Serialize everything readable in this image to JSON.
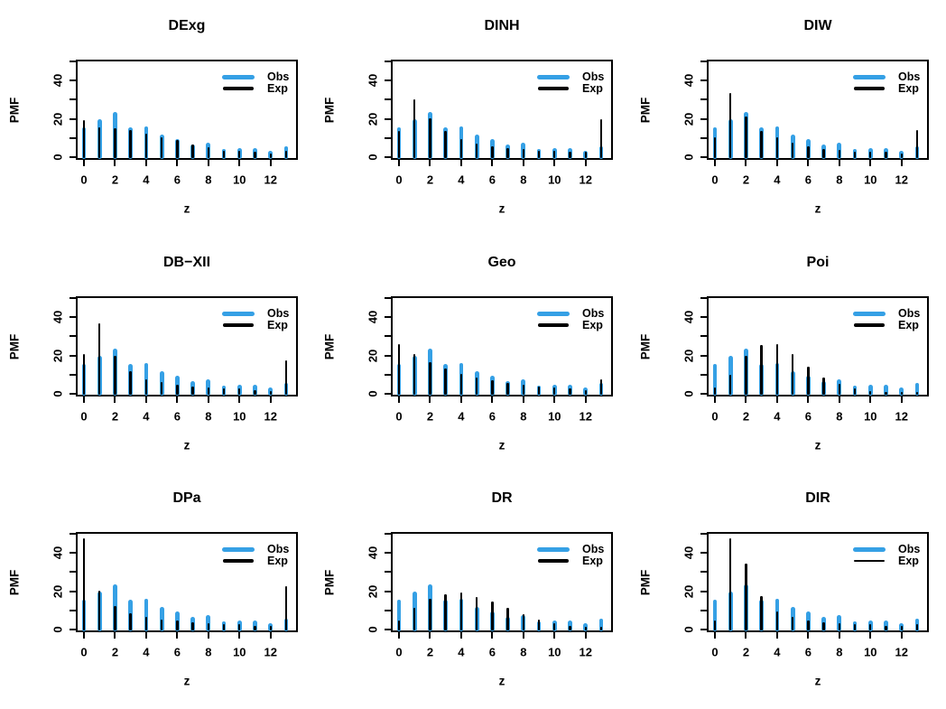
{
  "figure": {
    "y_axis_label": "PMF",
    "x_axis_label": "z",
    "background_color": "#ffffff",
    "axis_color": "#000000",
    "colors": {
      "obs": "#35A0E5",
      "exp": "#000000"
    },
    "legend": {
      "obs_label": "Obs",
      "exp_label": "Exp",
      "position": "top-right",
      "frame": "none"
    },
    "y_ticks": [
      {
        "v": 0,
        "label": "0"
      },
      {
        "v": 10,
        "label": ""
      },
      {
        "v": 20,
        "label": "20"
      },
      {
        "v": 30,
        "label": ""
      },
      {
        "v": 40,
        "label": "40"
      },
      {
        "v": 50,
        "label": ""
      }
    ],
    "x_ticks": [
      {
        "v": 0,
        "label": "0"
      },
      {
        "v": 2,
        "label": "2"
      },
      {
        "v": 4,
        "label": "4"
      },
      {
        "v": 6,
        "label": "6"
      },
      {
        "v": 8,
        "label": "8"
      },
      {
        "v": 10,
        "label": "10"
      },
      {
        "v": 12,
        "label": "12"
      }
    ]
  },
  "chart_data": [
    {
      "type": "bar",
      "title": "DExg",
      "xlabel": "z",
      "ylabel": "PMF",
      "ylim": [
        0,
        52
      ],
      "x": [
        0,
        1,
        2,
        3,
        4,
        5,
        6,
        7,
        8,
        9,
        10,
        11,
        12,
        13
      ],
      "series": [
        {
          "name": "Obs",
          "values": [
            14.5,
            18.5,
            22.5,
            14.5,
            15,
            10.5,
            8.5,
            5.5,
            6.5,
            3,
            3.5,
            3.5,
            2,
            4.5
          ]
        },
        {
          "name": "Exp",
          "values": [
            18.5,
            15,
            14.5,
            13.5,
            11.5,
            10,
            8.5,
            6,
            4.5,
            2.5,
            2.5,
            2,
            1.5,
            2.5
          ]
        }
      ],
      "legend_position": "top-right",
      "exp_legend_weight": "thick"
    },
    {
      "type": "bar",
      "title": "DINH",
      "xlabel": "z",
      "ylabel": "PMF",
      "ylim": [
        0,
        52
      ],
      "x": [
        0,
        1,
        2,
        3,
        4,
        5,
        6,
        7,
        8,
        9,
        10,
        11,
        12,
        13
      ],
      "series": [
        {
          "name": "Obs",
          "values": [
            14.5,
            18.5,
            22.5,
            14.5,
            15,
            10.5,
            8.5,
            5.5,
            6.5,
            3,
            3.5,
            3.5,
            2,
            4.5
          ]
        },
        {
          "name": "Exp",
          "values": [
            13,
            29.5,
            19.5,
            13,
            9,
            6.5,
            5,
            4,
            3.5,
            2.5,
            2.5,
            2,
            2,
            19
          ]
        }
      ],
      "legend_position": "top-right",
      "exp_legend_weight": "thick"
    },
    {
      "type": "bar",
      "title": "DIW",
      "xlabel": "z",
      "ylabel": "PMF",
      "ylim": [
        0,
        52
      ],
      "x": [
        0,
        1,
        2,
        3,
        4,
        5,
        6,
        7,
        8,
        9,
        10,
        11,
        12,
        13
      ],
      "series": [
        {
          "name": "Obs",
          "values": [
            14.5,
            18.5,
            22.5,
            14.5,
            15,
            10.5,
            8.5,
            5.5,
            6.5,
            3,
            3.5,
            3.5,
            2,
            4.5
          ]
        },
        {
          "name": "Exp",
          "values": [
            10,
            33,
            20.5,
            13,
            10,
            7,
            5,
            3.5,
            3,
            2,
            2,
            2,
            1.5,
            13.5
          ]
        }
      ],
      "legend_position": "top-right",
      "exp_legend_weight": "thick"
    },
    {
      "type": "bar",
      "title": "DB−XII",
      "xlabel": "z",
      "ylabel": "PMF",
      "ylim": [
        0,
        52
      ],
      "x": [
        0,
        1,
        2,
        3,
        4,
        5,
        6,
        7,
        8,
        9,
        10,
        11,
        12,
        13
      ],
      "series": [
        {
          "name": "Obs",
          "values": [
            14.5,
            18.5,
            22.5,
            14.5,
            15,
            10.5,
            8.5,
            5.5,
            6.5,
            3,
            3.5,
            3.5,
            2,
            4.5
          ]
        },
        {
          "name": "Exp",
          "values": [
            20,
            36,
            19,
            11,
            7,
            5.5,
            4,
            3,
            2.5,
            2,
            2,
            1.5,
            1,
            17
          ]
        }
      ],
      "legend_position": "top-right",
      "exp_legend_weight": "thick"
    },
    {
      "type": "bar",
      "title": "Geo",
      "xlabel": "z",
      "ylabel": "PMF",
      "ylim": [
        0,
        52
      ],
      "x": [
        0,
        1,
        2,
        3,
        4,
        5,
        6,
        7,
        8,
        9,
        10,
        11,
        12,
        13
      ],
      "series": [
        {
          "name": "Obs",
          "values": [
            14.5,
            18.5,
            22.5,
            14.5,
            15,
            10.5,
            8.5,
            5.5,
            6.5,
            3,
            3.5,
            3.5,
            2,
            4.5
          ]
        },
        {
          "name": "Exp",
          "values": [
            25.5,
            20,
            16,
            12.5,
            10,
            8,
            6.5,
            5,
            4,
            3,
            2.5,
            2,
            1.5,
            7
          ]
        }
      ],
      "legend_position": "top-right",
      "exp_legend_weight": "thick"
    },
    {
      "type": "bar",
      "title": "Poi",
      "xlabel": "z",
      "ylabel": "PMF",
      "ylim": [
        0,
        52
      ],
      "x": [
        0,
        1,
        2,
        3,
        4,
        5,
        6,
        7,
        8,
        9,
        10,
        11,
        12,
        13
      ],
      "series": [
        {
          "name": "Obs",
          "values": [
            14.5,
            18.5,
            22.5,
            14.5,
            15,
            10.5,
            8.5,
            5.5,
            6.5,
            3,
            3.5,
            3.5,
            2,
            4.5
          ]
        },
        {
          "name": "Exp",
          "values": [
            2.5,
            9.5,
            19,
            25,
            25.5,
            20,
            13.5,
            8,
            4.5,
            2,
            1,
            0.5,
            0.5,
            0.5
          ]
        }
      ],
      "legend_position": "top-right",
      "exp_legend_weight": "thick"
    },
    {
      "type": "bar",
      "title": "DPa",
      "xlabel": "z",
      "ylabel": "PMF",
      "ylim": [
        0,
        52
      ],
      "x": [
        0,
        1,
        2,
        3,
        4,
        5,
        6,
        7,
        8,
        9,
        10,
        11,
        12,
        13
      ],
      "series": [
        {
          "name": "Obs",
          "values": [
            14.5,
            18.5,
            22.5,
            14.5,
            15,
            10.5,
            8.5,
            5.5,
            6.5,
            3,
            3.5,
            3.5,
            2,
            4.5
          ]
        },
        {
          "name": "Exp",
          "values": [
            47,
            19.5,
            11.5,
            8,
            6,
            4.5,
            4,
            3,
            2.5,
            2,
            2,
            1.5,
            1.5,
            22
          ]
        }
      ],
      "legend_position": "top-right",
      "exp_legend_weight": "thick"
    },
    {
      "type": "bar",
      "title": "DR",
      "xlabel": "z",
      "ylabel": "PMF",
      "ylim": [
        0,
        52
      ],
      "x": [
        0,
        1,
        2,
        3,
        4,
        5,
        6,
        7,
        8,
        9,
        10,
        11,
        12,
        13
      ],
      "series": [
        {
          "name": "Obs",
          "values": [
            14.5,
            18.5,
            22.5,
            14.5,
            15,
            10.5,
            8.5,
            5.5,
            6.5,
            3,
            3.5,
            3.5,
            2,
            4.5
          ]
        },
        {
          "name": "Exp",
          "values": [
            4,
            10.5,
            15.5,
            18,
            18.5,
            16.5,
            14,
            10.5,
            7.5,
            4.5,
            2.5,
            1.5,
            1,
            1
          ]
        }
      ],
      "legend_position": "top-right",
      "exp_legend_weight": "thick"
    },
    {
      "type": "bar",
      "title": "DIR",
      "xlabel": "z",
      "ylabel": "PMF",
      "ylim": [
        0,
        52
      ],
      "x": [
        0,
        1,
        2,
        3,
        4,
        5,
        6,
        7,
        8,
        9,
        10,
        11,
        12,
        13
      ],
      "series": [
        {
          "name": "Obs",
          "values": [
            14.5,
            18.5,
            22.5,
            14.5,
            15,
            10.5,
            8.5,
            5.5,
            6.5,
            3,
            3.5,
            3.5,
            2,
            4.5
          ]
        },
        {
          "name": "Exp",
          "values": [
            4,
            47,
            34,
            17,
            9,
            6,
            4,
            3,
            2.5,
            2,
            2,
            1.5,
            1.5,
            2
          ]
        }
      ],
      "legend_position": "top-right",
      "exp_legend_weight": "thin"
    }
  ]
}
